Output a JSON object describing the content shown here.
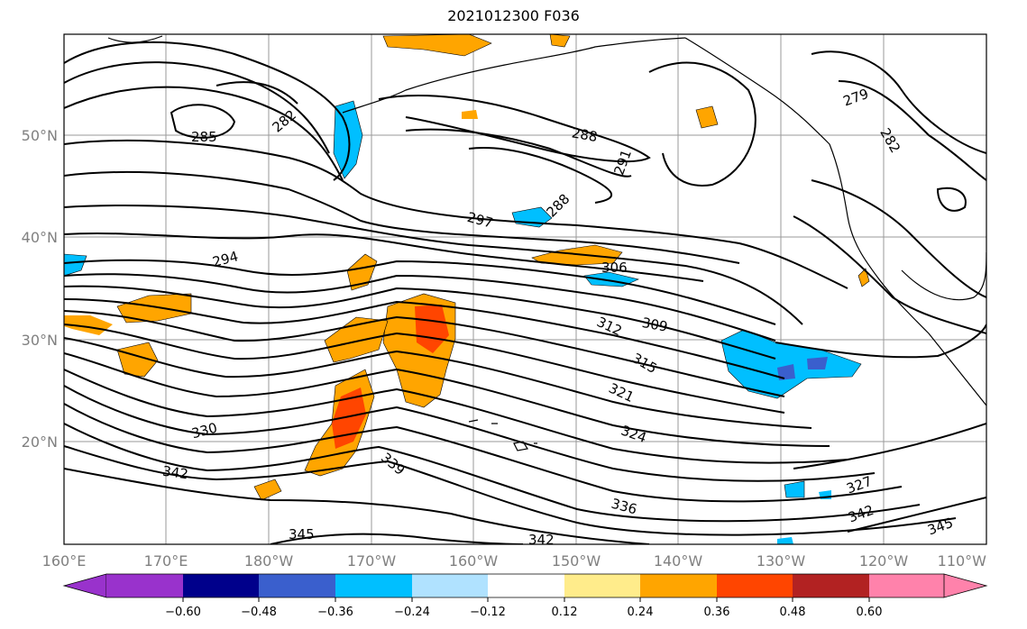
{
  "title": "2021012300 F036",
  "map": {
    "lon_ticks": [
      "160°E",
      "170°E",
      "180°W",
      "170°W",
      "160°W",
      "150°W",
      "140°W",
      "130°W",
      "120°W",
      "110°W"
    ],
    "lat_ticks": [
      "50°N",
      "40°N",
      "30°N",
      "20°N"
    ],
    "contour_labels": [
      "285",
      "282",
      "288",
      "291",
      "288",
      "279",
      "282",
      "297",
      "294",
      "306",
      "309",
      "312",
      "315",
      "321",
      "324",
      "330",
      "342",
      "339",
      "336",
      "327",
      "342",
      "345",
      "345",
      "342"
    ]
  },
  "colorbar": {
    "ticks": [
      "−0.60",
      "−0.48",
      "−0.36",
      "−0.24",
      "−0.12",
      "0.12",
      "0.24",
      "0.36",
      "0.48",
      "0.60"
    ],
    "colors": [
      "#9932CC",
      "#00008B",
      "#3A5FCD",
      "#00BFFF",
      "#B0E2FF",
      "#FFFFFF",
      "#FFEC8B",
      "#FFA500",
      "#FF4500",
      "#B22222",
      "#FF82AB"
    ]
  },
  "anomaly_colors": {
    "neg_light": "#B0E2FF",
    "neg_mid": "#00BFFF",
    "neg_dark": "#3A5FCD",
    "pos_light": "#FFEC8B",
    "pos_mid": "#FFA500",
    "pos_strong": "#FF4500"
  }
}
